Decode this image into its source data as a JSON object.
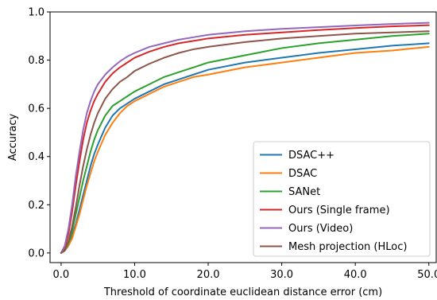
{
  "chart_data": {
    "type": "line",
    "title": "",
    "xlabel": "Threshold of coordinate euclidean distance error (cm)",
    "ylabel": "Accuracy",
    "xlim": [
      -1.5,
      51
    ],
    "ylim": [
      -0.04,
      1.0
    ],
    "xticks": [
      0,
      10,
      20,
      30,
      40,
      50
    ],
    "xtick_labels": [
      "0.0",
      "10.0",
      "20.0",
      "30.0",
      "40.0",
      "50.0"
    ],
    "yticks": [
      0.0,
      0.2,
      0.4,
      0.6,
      0.8,
      1.0
    ],
    "ytick_labels": [
      "0.0",
      "0.2",
      "0.4",
      "0.6",
      "0.8",
      "1.0"
    ],
    "grid": false,
    "legend_position": "bottom-right",
    "x": [
      0,
      0.5,
      1,
      1.5,
      2,
      2.5,
      3,
      3.5,
      4,
      4.5,
      5,
      6,
      7,
      8,
      9,
      10,
      12,
      14,
      16,
      18,
      20,
      25,
      30,
      35,
      40,
      45,
      50
    ],
    "series": [
      {
        "name": "DSAC++",
        "color": "#1f77b4",
        "values": [
          0.0,
          0.01,
          0.03,
          0.07,
          0.12,
          0.18,
          0.24,
          0.3,
          0.36,
          0.41,
          0.45,
          0.52,
          0.57,
          0.6,
          0.62,
          0.64,
          0.67,
          0.7,
          0.72,
          0.74,
          0.76,
          0.79,
          0.81,
          0.83,
          0.845,
          0.86,
          0.87
        ]
      },
      {
        "name": "DSAC",
        "color": "#ff7f0e",
        "values": [
          0.0,
          0.01,
          0.03,
          0.06,
          0.11,
          0.16,
          0.22,
          0.28,
          0.33,
          0.38,
          0.42,
          0.49,
          0.54,
          0.58,
          0.61,
          0.63,
          0.66,
          0.69,
          0.71,
          0.73,
          0.74,
          0.77,
          0.79,
          0.81,
          0.83,
          0.84,
          0.855
        ]
      },
      {
        "name": "SANet",
        "color": "#2ca02c",
        "values": [
          0.0,
          0.01,
          0.04,
          0.09,
          0.16,
          0.23,
          0.3,
          0.36,
          0.42,
          0.47,
          0.51,
          0.57,
          0.61,
          0.63,
          0.65,
          0.67,
          0.7,
          0.73,
          0.75,
          0.77,
          0.79,
          0.82,
          0.85,
          0.87,
          0.885,
          0.9,
          0.91
        ]
      },
      {
        "name": "Ours (Single frame)",
        "color": "#d62728",
        "values": [
          0.0,
          0.02,
          0.08,
          0.17,
          0.28,
          0.38,
          0.47,
          0.54,
          0.59,
          0.63,
          0.66,
          0.71,
          0.745,
          0.77,
          0.79,
          0.81,
          0.835,
          0.855,
          0.87,
          0.88,
          0.89,
          0.905,
          0.915,
          0.925,
          0.933,
          0.94,
          0.945
        ]
      },
      {
        "name": "Ours (Video)",
        "color": "#9467bd",
        "values": [
          0.0,
          0.03,
          0.1,
          0.2,
          0.32,
          0.42,
          0.51,
          0.58,
          0.63,
          0.67,
          0.7,
          0.74,
          0.77,
          0.795,
          0.815,
          0.83,
          0.855,
          0.87,
          0.885,
          0.895,
          0.905,
          0.92,
          0.93,
          0.937,
          0.944,
          0.95,
          0.955
        ]
      },
      {
        "name": "Mesh projection (HLoc)",
        "color": "#8c564b",
        "values": [
          0.0,
          0.01,
          0.05,
          0.11,
          0.19,
          0.28,
          0.36,
          0.43,
          0.49,
          0.54,
          0.58,
          0.64,
          0.68,
          0.71,
          0.73,
          0.755,
          0.785,
          0.81,
          0.83,
          0.845,
          0.855,
          0.875,
          0.89,
          0.9,
          0.91,
          0.915,
          0.92
        ]
      }
    ]
  }
}
